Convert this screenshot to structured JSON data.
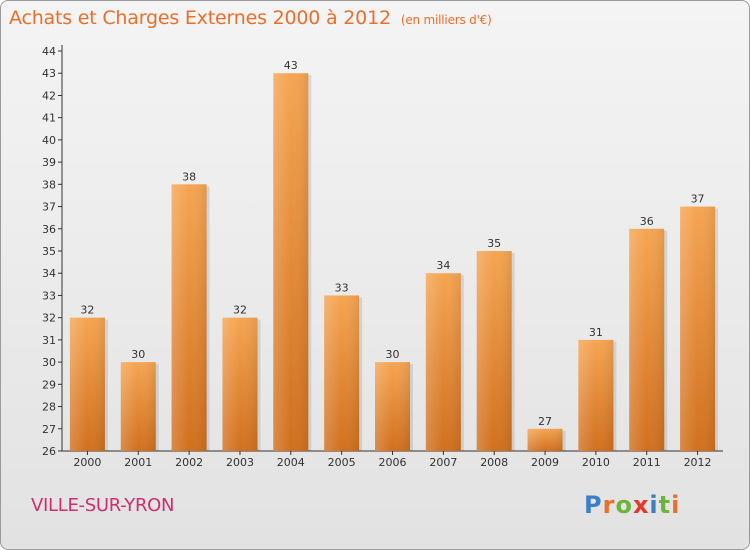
{
  "header": {
    "title": "Achats et Charges Externes 2000 à 2012",
    "subtitle": "(en milliers d'€)"
  },
  "footer": {
    "place": "VILLE-SUR-YRON",
    "logo_text": "Proxiti"
  },
  "colors": {
    "bar_light": "#f5a552",
    "bar_dark": "#d0701e",
    "accent_text": "#e8702a",
    "place_text": "#cc2e6e",
    "logo_letters": [
      "#3a7fc8",
      "#e8702a",
      "#6fb43a",
      "#e8362a",
      "#3a7fc8",
      "#6fb43a",
      "#e8702a"
    ]
  },
  "chart_data": {
    "type": "bar",
    "categories": [
      "2000",
      "2001",
      "2002",
      "2003",
      "2004",
      "2005",
      "2006",
      "2007",
      "2008",
      "2009",
      "2010",
      "2011",
      "2012"
    ],
    "values": [
      32,
      30,
      38,
      32,
      43,
      33,
      30,
      34,
      35,
      27,
      31,
      36,
      37
    ],
    "data_labels": [
      "32",
      "30",
      "38",
      "32",
      "43",
      "33",
      "30",
      "34",
      "35",
      "27",
      "31",
      "36",
      "37"
    ],
    "y_ticks": [
      "26",
      "27",
      "28",
      "29",
      "30",
      "31",
      "32",
      "33",
      "34",
      "35",
      "36",
      "37",
      "38",
      "39",
      "40",
      "41",
      "42",
      "43",
      "44"
    ],
    "ylim": [
      26,
      44
    ],
    "grid": false,
    "legend": "none"
  }
}
